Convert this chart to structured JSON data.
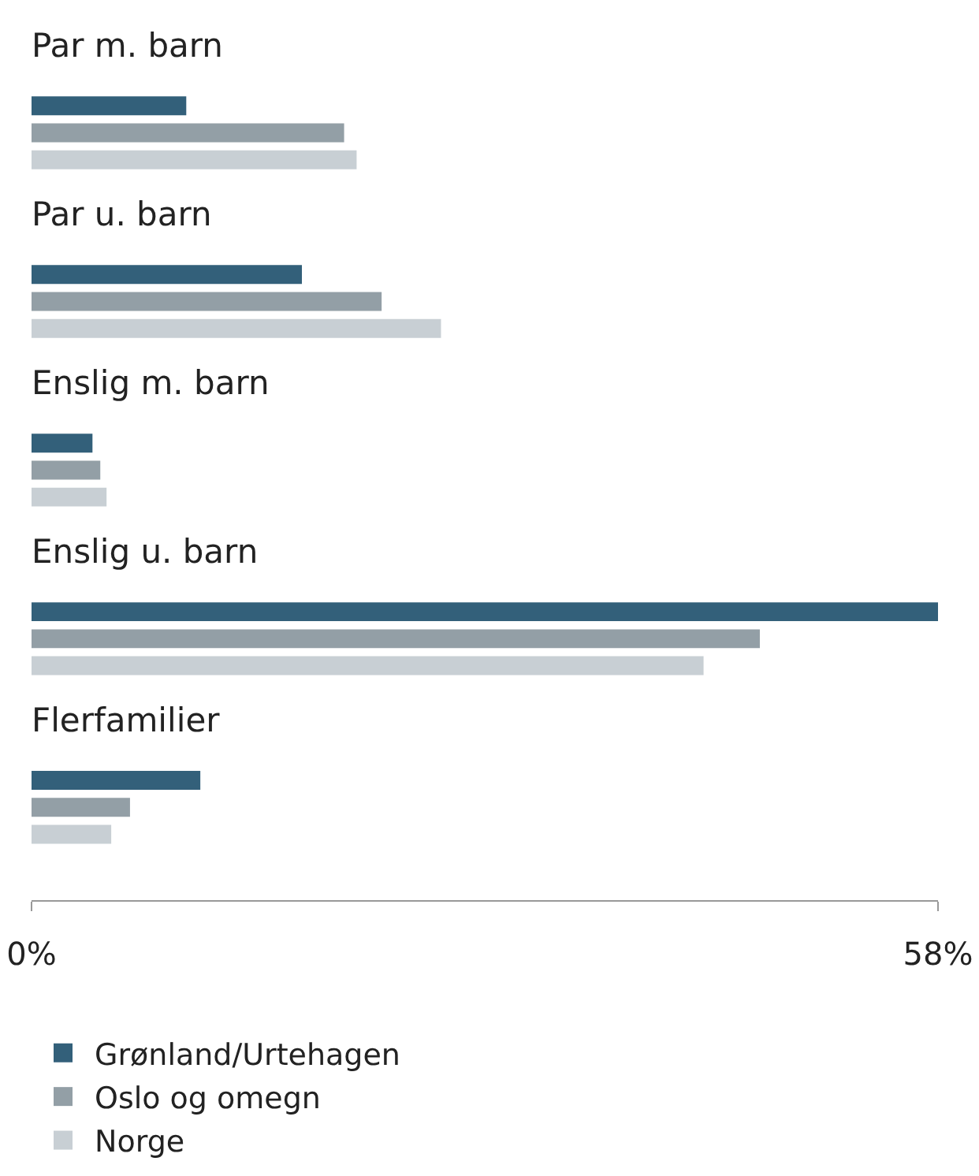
{
  "chart_data": {
    "type": "bar",
    "orientation": "horizontal",
    "categories": [
      "Par m. barn",
      "Par u. barn",
      "Enslig m. barn",
      "Enslig u. barn",
      "Flerfamilier"
    ],
    "series": [
      {
        "name": "Grønland/Urtehagen",
        "color": "#33607a",
        "values": [
          9.9,
          17.3,
          3.9,
          58,
          10.8
        ]
      },
      {
        "name": "Oslo og omegn",
        "color": "#939fa6",
        "values": [
          20.0,
          22.4,
          4.4,
          46.6,
          6.3
        ]
      },
      {
        "name": "Norge",
        "color": "#c8cfd4",
        "values": [
          20.8,
          26.2,
          4.8,
          43.0,
          5.1
        ]
      }
    ],
    "xlim": [
      0,
      58
    ],
    "xticks": [
      {
        "value": 0,
        "label": "0%"
      },
      {
        "value": 58,
        "label": "58%"
      }
    ],
    "legend": "bottom"
  }
}
